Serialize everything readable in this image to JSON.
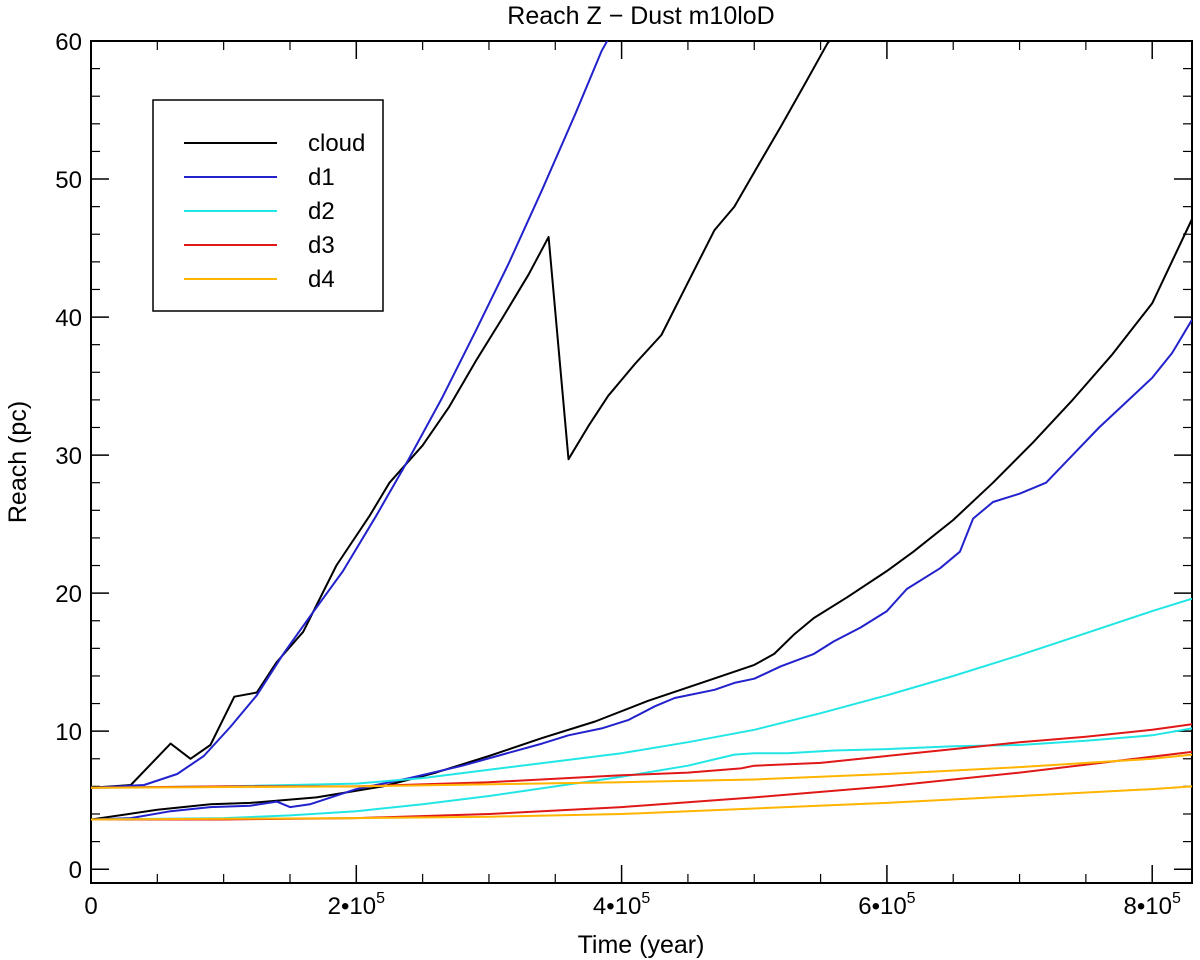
{
  "chart_data": {
    "type": "line",
    "title": "Reach Z − Dust m10loD",
    "xlabel": "Time (year)",
    "ylabel": "Reach (pc)",
    "xlim": [
      0,
      830000
    ],
    "ylim": [
      -1,
      60
    ],
    "x_ticks": [
      {
        "value": 0,
        "label": "0"
      },
      {
        "value": 200000,
        "label": "2•10",
        "exp": "5"
      },
      {
        "value": 400000,
        "label": "4•10",
        "exp": "5"
      },
      {
        "value": 600000,
        "label": "6•10",
        "exp": "5"
      },
      {
        "value": 800000,
        "label": "8•10",
        "exp": "5"
      }
    ],
    "y_ticks": [
      0,
      10,
      20,
      30,
      40,
      50,
      60
    ],
    "legend_position": "top-left",
    "legend": [
      {
        "name": "cloud",
        "color": "#000000"
      },
      {
        "name": "d1",
        "color": "#2222cc"
      },
      {
        "name": "d2",
        "color": "#22e6e6"
      },
      {
        "name": "d3",
        "color": "#e01818"
      },
      {
        "name": "d4",
        "color": "#ffb400"
      }
    ],
    "series": [
      {
        "name": "cloud",
        "color": "#000000",
        "group": "a",
        "points": [
          [
            0,
            5.9
          ],
          [
            30000,
            6.1
          ],
          [
            60000,
            9.1
          ],
          [
            75000,
            8.0
          ],
          [
            90000,
            9.0
          ],
          [
            108000,
            12.5
          ],
          [
            125000,
            12.8
          ],
          [
            140000,
            15
          ],
          [
            160000,
            17.2
          ],
          [
            185000,
            22
          ],
          [
            210000,
            25.6
          ],
          [
            225000,
            28
          ],
          [
            250000,
            30.7
          ],
          [
            270000,
            33.5
          ],
          [
            290000,
            36.8
          ],
          [
            310000,
            39.9
          ],
          [
            330000,
            43.1
          ],
          [
            345000,
            45.8
          ],
          [
            360000,
            29.7
          ],
          [
            375000,
            32.1
          ],
          [
            390000,
            34.3
          ],
          [
            410000,
            36.6
          ],
          [
            430000,
            38.7
          ],
          [
            450000,
            42.5
          ],
          [
            470000,
            46.3
          ],
          [
            485000,
            48.0
          ],
          [
            500000,
            50.5
          ],
          [
            520000,
            53.8
          ],
          [
            540000,
            57.2
          ],
          [
            555000,
            59.8
          ],
          [
            565000,
            61
          ]
        ]
      },
      {
        "name": "cloud",
        "color": "#000000",
        "group": "b",
        "points": [
          [
            0,
            3.6
          ],
          [
            50000,
            4.3
          ],
          [
            90000,
            4.7
          ],
          [
            120000,
            4.8
          ],
          [
            170000,
            5.2
          ],
          [
            220000,
            6.0
          ],
          [
            260000,
            7.0
          ],
          [
            300000,
            8.2
          ],
          [
            340000,
            9.5
          ],
          [
            380000,
            10.7
          ],
          [
            420000,
            12.2
          ],
          [
            460000,
            13.5
          ],
          [
            500000,
            14.8
          ],
          [
            515000,
            15.6
          ],
          [
            530000,
            17.0
          ],
          [
            545000,
            18.2
          ],
          [
            570000,
            19.7
          ],
          [
            600000,
            21.6
          ],
          [
            620000,
            23.0
          ],
          [
            650000,
            25.3
          ],
          [
            680000,
            28.0
          ],
          [
            710000,
            30.9
          ],
          [
            740000,
            34.0
          ],
          [
            770000,
            37.3
          ],
          [
            800000,
            41.0
          ],
          [
            830000,
            47.1
          ]
        ]
      },
      {
        "name": "d1",
        "color": "#2222cc",
        "group": "a",
        "points": [
          [
            0,
            5.9
          ],
          [
            40000,
            6.1
          ],
          [
            65000,
            6.9
          ],
          [
            85000,
            8.2
          ],
          [
            105000,
            10.3
          ],
          [
            125000,
            12.6
          ],
          [
            145000,
            15.6
          ],
          [
            165000,
            18.3
          ],
          [
            190000,
            21.6
          ],
          [
            215000,
            25.6
          ],
          [
            240000,
            29.8
          ],
          [
            265000,
            34.2
          ],
          [
            290000,
            39.0
          ],
          [
            315000,
            43.9
          ],
          [
            340000,
            49.2
          ],
          [
            365000,
            54.7
          ],
          [
            385000,
            59.3
          ],
          [
            395000,
            61
          ]
        ]
      },
      {
        "name": "d1",
        "color": "#2222cc",
        "group": "b",
        "points": [
          [
            0,
            3.6
          ],
          [
            30000,
            3.7
          ],
          [
            60000,
            4.2
          ],
          [
            90000,
            4.5
          ],
          [
            120000,
            4.6
          ],
          [
            140000,
            4.9
          ],
          [
            150000,
            4.5
          ],
          [
            165000,
            4.7
          ],
          [
            200000,
            5.8
          ],
          [
            240000,
            6.6
          ],
          [
            280000,
            7.5
          ],
          [
            310000,
            8.3
          ],
          [
            340000,
            9.1
          ],
          [
            360000,
            9.7
          ],
          [
            385000,
            10.2
          ],
          [
            405000,
            10.8
          ],
          [
            425000,
            11.8
          ],
          [
            440000,
            12.4
          ],
          [
            470000,
            13.0
          ],
          [
            485000,
            13.5
          ],
          [
            500000,
            13.8
          ],
          [
            520000,
            14.7
          ],
          [
            545000,
            15.6
          ],
          [
            560000,
            16.5
          ],
          [
            580000,
            17.5
          ],
          [
            600000,
            18.7
          ],
          [
            615000,
            20.3
          ],
          [
            640000,
            21.8
          ],
          [
            655000,
            23.0
          ],
          [
            665000,
            25.4
          ],
          [
            680000,
            26.6
          ],
          [
            700000,
            27.2
          ],
          [
            720000,
            28.0
          ],
          [
            740000,
            30.0
          ],
          [
            760000,
            32.0
          ],
          [
            780000,
            33.8
          ],
          [
            800000,
            35.6
          ],
          [
            815000,
            37.4
          ],
          [
            830000,
            39.8
          ]
        ]
      },
      {
        "name": "d2",
        "color": "#22e6e6",
        "group": "a",
        "points": [
          [
            0,
            5.9
          ],
          [
            100000,
            6.0
          ],
          [
            200000,
            6.2
          ],
          [
            250000,
            6.6
          ],
          [
            300000,
            7.2
          ],
          [
            350000,
            7.8
          ],
          [
            400000,
            8.4
          ],
          [
            450000,
            9.2
          ],
          [
            500000,
            10.1
          ],
          [
            550000,
            11.3
          ],
          [
            600000,
            12.6
          ],
          [
            650000,
            14.0
          ],
          [
            700000,
            15.5
          ],
          [
            750000,
            17.1
          ],
          [
            800000,
            18.7
          ],
          [
            830000,
            19.6
          ]
        ]
      },
      {
        "name": "d2",
        "color": "#22e6e6",
        "group": "b",
        "points": [
          [
            0,
            3.6
          ],
          [
            100000,
            3.7
          ],
          [
            150000,
            3.9
          ],
          [
            200000,
            4.2
          ],
          [
            250000,
            4.7
          ],
          [
            300000,
            5.3
          ],
          [
            350000,
            6.0
          ],
          [
            400000,
            6.7
          ],
          [
            450000,
            7.5
          ],
          [
            485000,
            8.3
          ],
          [
            500000,
            8.4
          ],
          [
            525000,
            8.4
          ],
          [
            560000,
            8.6
          ],
          [
            600000,
            8.7
          ],
          [
            650000,
            8.9
          ],
          [
            700000,
            9.0
          ],
          [
            750000,
            9.3
          ],
          [
            800000,
            9.7
          ],
          [
            830000,
            10.2
          ]
        ]
      },
      {
        "name": "d3",
        "color": "#e01818",
        "group": "a",
        "points": [
          [
            0,
            5.9
          ],
          [
            100000,
            6.0
          ],
          [
            200000,
            6.0
          ],
          [
            300000,
            6.3
          ],
          [
            400000,
            6.8
          ],
          [
            450000,
            7.0
          ],
          [
            490000,
            7.3
          ],
          [
            500000,
            7.5
          ],
          [
            550000,
            7.7
          ],
          [
            600000,
            8.2
          ],
          [
            650000,
            8.7
          ],
          [
            700000,
            9.2
          ],
          [
            750000,
            9.6
          ],
          [
            800000,
            10.1
          ],
          [
            830000,
            10.5
          ]
        ]
      },
      {
        "name": "d3",
        "color": "#e01818",
        "group": "b",
        "points": [
          [
            0,
            3.6
          ],
          [
            100000,
            3.6
          ],
          [
            200000,
            3.7
          ],
          [
            300000,
            4.0
          ],
          [
            400000,
            4.5
          ],
          [
            500000,
            5.2
          ],
          [
            600000,
            6.0
          ],
          [
            700000,
            7.0
          ],
          [
            770000,
            7.8
          ],
          [
            830000,
            8.5
          ]
        ]
      },
      {
        "name": "d4",
        "color": "#ffb400",
        "group": "a",
        "points": [
          [
            0,
            5.9
          ],
          [
            200000,
            6.0
          ],
          [
            400000,
            6.3
          ],
          [
            500000,
            6.5
          ],
          [
            600000,
            6.9
          ],
          [
            700000,
            7.4
          ],
          [
            800000,
            8.0
          ],
          [
            830000,
            8.3
          ]
        ]
      },
      {
        "name": "d4",
        "color": "#ffb400",
        "group": "b",
        "points": [
          [
            0,
            3.6
          ],
          [
            200000,
            3.7
          ],
          [
            300000,
            3.8
          ],
          [
            400000,
            4.0
          ],
          [
            500000,
            4.4
          ],
          [
            600000,
            4.8
          ],
          [
            700000,
            5.3
          ],
          [
            800000,
            5.8
          ],
          [
            830000,
            6.0
          ]
        ]
      }
    ]
  }
}
